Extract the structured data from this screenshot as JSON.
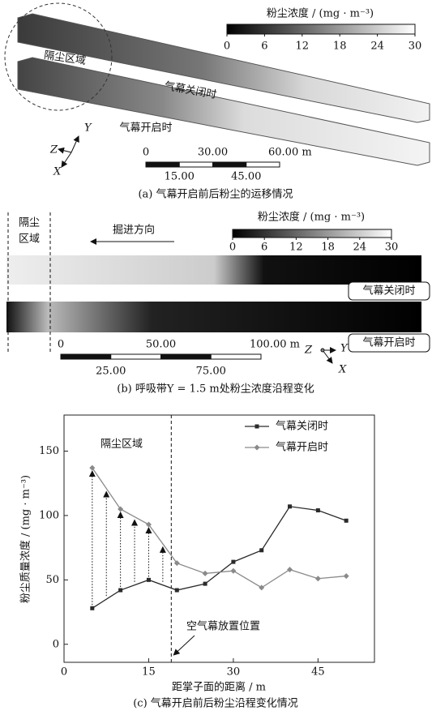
{
  "panel_a": {
    "caption": "(a) 气幕开启前后粉尘的运移情况",
    "colorbar": {
      "title": "粉尘浓度 / (mg · m⁻³)",
      "lim": [
        0,
        30
      ],
      "ticks": [
        0,
        6,
        12,
        18,
        24,
        30
      ]
    },
    "zone_label": "隔尘区域",
    "closed_label": "气幕关闭时",
    "open_label": "气幕开启时",
    "axis_y": "Y",
    "axis_z": "Z",
    "axis_x": "X",
    "scale_bar": {
      "lim": [
        0,
        60
      ],
      "ticks": [
        0,
        {
          "value": 15,
          "label": "15.00"
        },
        {
          "value": 30,
          "label": "30.00"
        },
        {
          "value": 45,
          "label": "45.00"
        },
        {
          "value": 60,
          "label": "60.00 m"
        }
      ]
    }
  },
  "panel_b": {
    "caption": "(b) 呼吸带Y = 1.5 m处粉尘浓度沿程变化",
    "colorbar": {
      "title": "粉尘浓度 / (mg · m⁻³)",
      "lim": [
        0,
        30
      ],
      "ticks": [
        0,
        6,
        12,
        18,
        24,
        30
      ]
    },
    "zone_label": [
      "隔尘",
      "区域"
    ],
    "direction_label": "掘进方向",
    "closed_label": "气幕关闭时",
    "open_label": "气幕开启时",
    "axis_z": "Z",
    "axis_y": "Y",
    "axis_x": "X",
    "scale_bar": {
      "lim": [
        0,
        100
      ],
      "ticks": [
        0,
        {
          "value": 25,
          "label": "25.00"
        },
        {
          "value": 50,
          "label": "50.00"
        },
        {
          "value": 75,
          "label": "75.00"
        },
        {
          "value": 100,
          "label": "100.00 m"
        }
      ]
    }
  },
  "chart_data": {
    "type": "line",
    "caption": "(c) 气幕开启前后粉尘沿程变化情况",
    "x_label": "距掌子面的距离 / m",
    "y_label": "粉尘质量浓度 / (mg · m⁻³)",
    "x": [
      5,
      10,
      15,
      20,
      25,
      30,
      35,
      40,
      45,
      50
    ],
    "series": [
      {
        "name": "气幕关闭时",
        "color": "#2a2a2a",
        "marker": "square",
        "values": [
          28,
          42,
          50,
          42,
          47,
          64,
          73,
          107,
          104,
          96
        ]
      },
      {
        "name": "气幕开启时",
        "color": "#8a8a8a",
        "marker": "diamond",
        "values": [
          137,
          105,
          93,
          63,
          55,
          57,
          44,
          58,
          51,
          53
        ]
      }
    ],
    "xlim": [
      0,
      55
    ],
    "ylim": [
      -14,
      178
    ],
    "xticks": [
      0,
      15,
      30,
      45
    ],
    "yticks": [
      0,
      50,
      100,
      150
    ],
    "divider_x": 19,
    "zone_annotation": "隔尘区域",
    "divider_annotation": "空气幕放置位置",
    "legend": "upper right"
  }
}
